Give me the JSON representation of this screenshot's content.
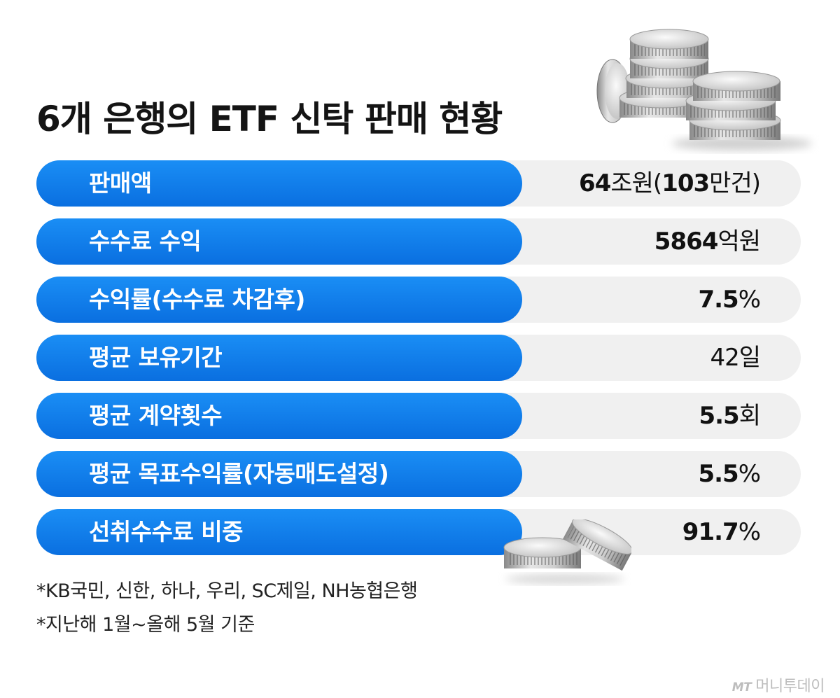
{
  "title": "6개 은행의 ETF 신탁 판매 현황",
  "rows": [
    {
      "label": "판매액",
      "value_bold": "64",
      "value_rest": "조원(",
      "value_bold2": "103",
      "value_rest2": "만건)"
    },
    {
      "label": "수수료 수익",
      "value_bold": "5864",
      "value_rest": "억원",
      "value_bold2": "",
      "value_rest2": ""
    },
    {
      "label": "수익률(수수료 차감후)",
      "value_bold": "7.5",
      "value_rest": "%",
      "value_bold2": "",
      "value_rest2": ""
    },
    {
      "label": "평균 보유기간",
      "value_bold": "",
      "value_rest": "42일",
      "value_bold2": "",
      "value_rest2": ""
    },
    {
      "label": "평균 계약횟수",
      "value_bold": "5.5",
      "value_rest": "회",
      "value_bold2": "",
      "value_rest2": ""
    },
    {
      "label": "평균 목표수익률(자동매도설정)",
      "value_bold": "5.5",
      "value_rest": "%",
      "value_bold2": "",
      "value_rest2": ""
    },
    {
      "label": "선취수수료 비중",
      "value_bold": "91.7",
      "value_rest": "%",
      "value_bold2": "",
      "value_rest2": ""
    }
  ],
  "notes": [
    "*KB국민, 신한, 하나, 우리, SC제일, NH농협은행",
    "*지난해 1월~올해 5월 기준"
  ],
  "brand": {
    "mark": "MT",
    "name": "머니투데이"
  },
  "colors": {
    "pill": "#0a7bea",
    "row_bg": "#f0f0f0"
  },
  "illustrations": [
    "coin-stack-illustration",
    "coin-pair-illustration"
  ]
}
